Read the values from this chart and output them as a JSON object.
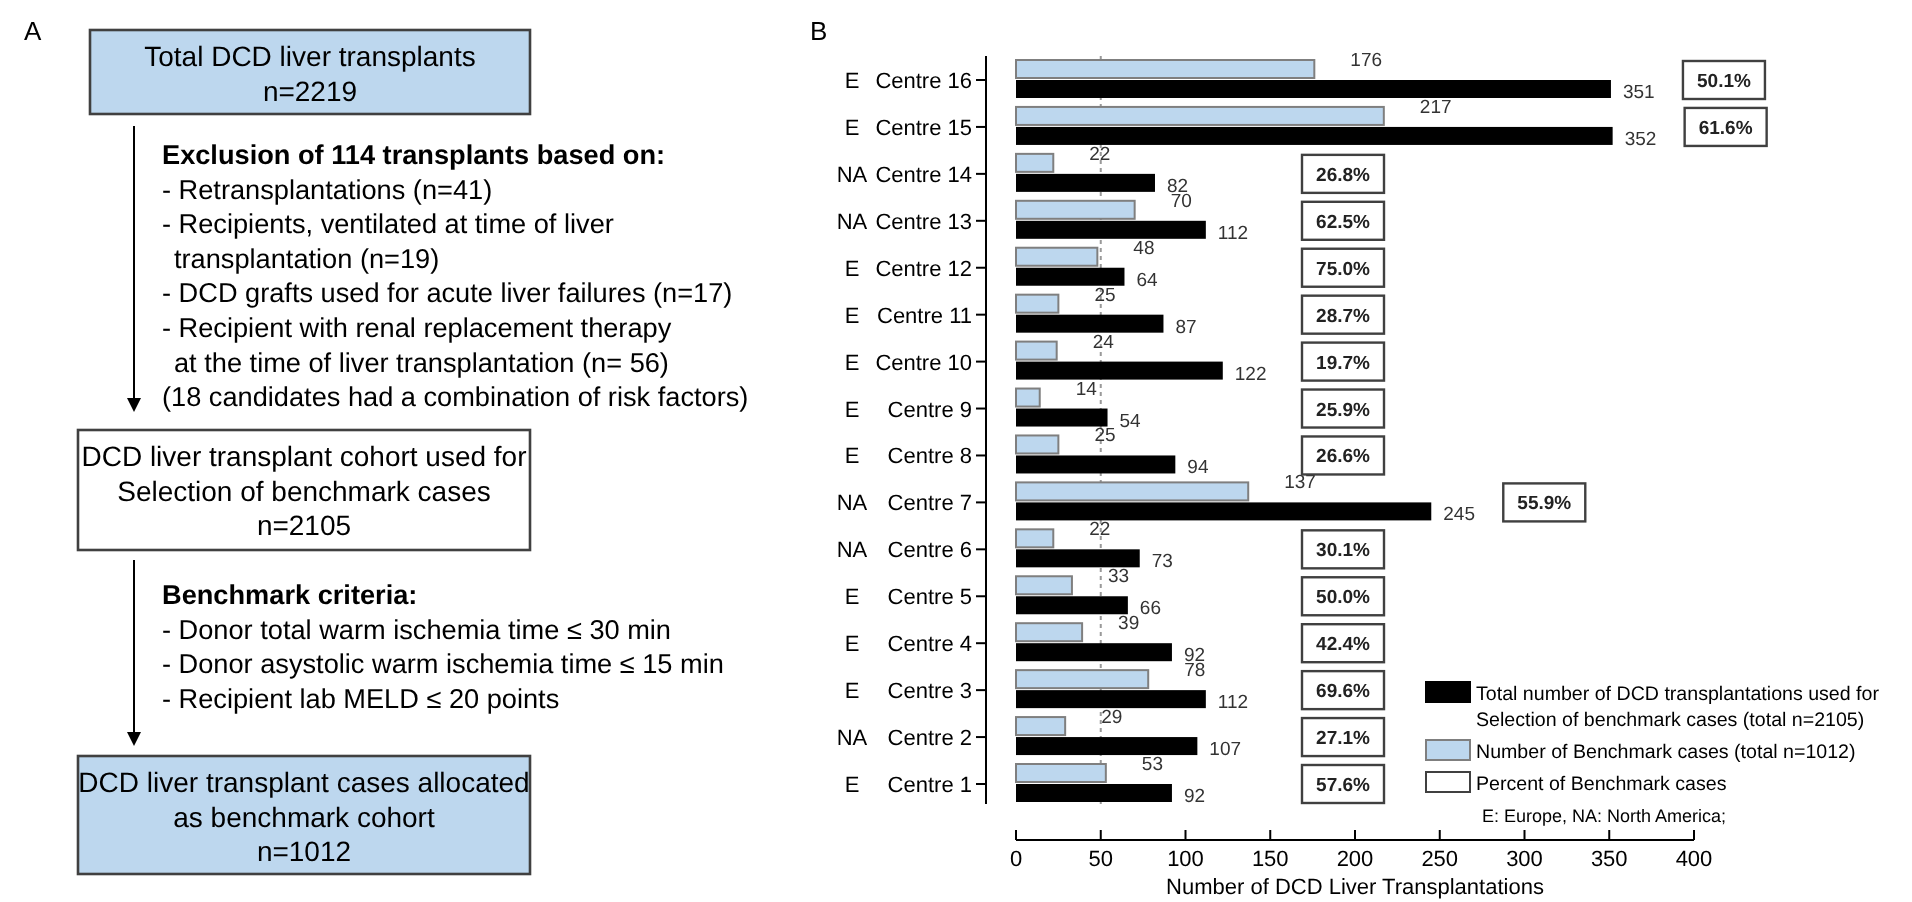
{
  "chart_data": [
    {
      "type": "other",
      "annotations": [
        "A",
        "Total DCD liver transplants\nn=2219",
        "Exclusion of 114 transplants based on:\n- Retransplantations (n=41)\n- Recipients, ventilated at time of liver\ntransplantation (n=19)\n- DCD grafts used for acute liver failures (n=17)\n- Recipient with renal replacement therapy\nat the time of liver transplantation (n= 56)\n(18 candidates had a combination of risk factors)",
        "DCD liver transplant cohort used for\nSelection of benchmark cases\nn=2105",
        "Benchmark criteria:\n- Donor total warm ischemia time ≤ 30 min\n- Donor asystolic warm ischemia time ≤ 15 min\n- Recipient lab MELD ≤ 20 points",
        "DCD liver transplant cases allocated\nas benchmark cohort\nn=1012"
      ]
    },
    {
      "type": "bar",
      "orientation": "horizontal",
      "xlabel": "Number of DCD Liver Transplantations",
      "categories": [
        "Centre 16",
        "Centre 15",
        "Centre 14",
        "Centre 13",
        "Centre 12",
        "Centre 11",
        "Centre 10",
        "Centre 9",
        "Centre 8",
        "Centre 7",
        "Centre 6",
        "Centre 5",
        "Centre 4",
        "Centre 3",
        "Centre 2",
        "Centre 1"
      ],
      "series": [
        {
          "name": "Total number of DCD transplantations used for Selection of benchmark cases (total n=2105)",
          "color": "#000000",
          "values": [
            351,
            352,
            82,
            112,
            64,
            87,
            122,
            54,
            94,
            245,
            73,
            66,
            92,
            112,
            107,
            92
          ]
        },
        {
          "name": "Number of Benchmark cases (total n=1012)",
          "color": "#bdd7ee",
          "values": [
            176,
            217,
            22,
            70,
            48,
            25,
            24,
            14,
            25,
            137,
            22,
            33,
            39,
            78,
            29,
            53
          ]
        }
      ],
      "data_labels": true,
      "xlim": [
        0,
        400
      ],
      "xticks": [
        0,
        50,
        100,
        150,
        200,
        250,
        300,
        350,
        400
      ],
      "grid": false,
      "legend": "bottom right",
      "ref_lines": [
        {
          "axis": "x",
          "value": 50,
          "color": "#999999",
          "line_style": "dotted"
        }
      ],
      "annotations": [
        "E",
        "E",
        "NA",
        "NA",
        "E",
        "E",
        "E",
        "E",
        "E",
        "NA",
        "NA",
        "E",
        "E",
        "E",
        "NA",
        "E",
        "50.1%",
        "61.6%",
        "26.8%",
        "62.5%",
        "75.0%",
        "28.7%",
        "19.7%",
        "25.9%",
        "26.6%",
        "55.9%",
        "30.1%",
        "50.0%",
        "42.4%",
        "69.6%",
        "27.1%",
        "57.6%",
        "Percent of Benchmark cases",
        "E: Europe, NA: North America;",
        "B"
      ]
    }
  ]
}
